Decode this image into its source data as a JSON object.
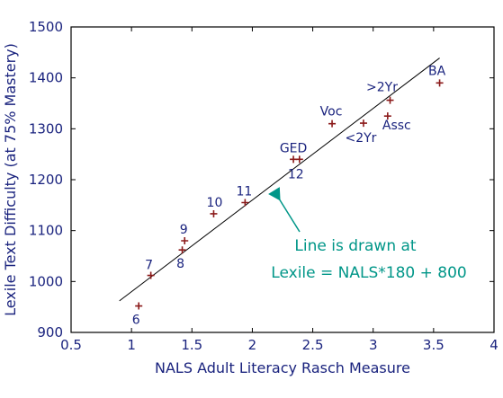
{
  "chart_data": {
    "type": "scatter",
    "xlabel": "NALS Adult Literacy Rasch Measure",
    "ylabel": "Lexile Text Difficulty (at 75% Mastery)",
    "xlim": [
      0.5,
      4
    ],
    "ylim": [
      900,
      1500
    ],
    "xticks": [
      "0.5",
      "1",
      "1.5",
      "2",
      "2.5",
      "3",
      "3.5",
      "4"
    ],
    "yticks": [
      "900",
      "1000",
      "1100",
      "1200",
      "1300",
      "1400",
      "1500"
    ],
    "grid": false,
    "points": [
      {
        "label": "6",
        "x": 1.06,
        "y": 952
      },
      {
        "label": "7",
        "x": 1.16,
        "y": 1012
      },
      {
        "label": "8",
        "x": 1.42,
        "y": 1062
      },
      {
        "label": "9",
        "x": 1.44,
        "y": 1080
      },
      {
        "label": "10",
        "x": 1.68,
        "y": 1133
      },
      {
        "label": "11",
        "x": 1.94,
        "y": 1155
      },
      {
        "label": "GED",
        "x": 2.34,
        "y": 1240
      },
      {
        "label": "12",
        "x": 2.39,
        "y": 1240
      },
      {
        "label": "Voc",
        "x": 2.66,
        "y": 1310
      },
      {
        "label": "<2Yr",
        "x": 2.92,
        "y": 1311
      },
      {
        "label": "Assc",
        "x": 3.12,
        "y": 1325
      },
      {
        "label": ">2Yr",
        "x": 3.14,
        "y": 1356
      },
      {
        "label": "BA",
        "x": 3.55,
        "y": 1390
      }
    ],
    "fit_line": {
      "slope": 180,
      "intercept": 800,
      "x_range": [
        0.9,
        3.55
      ]
    },
    "annotation": {
      "line1": "Line is drawn at",
      "line2": "Lexile = NALS*180 + 800"
    },
    "colors": {
      "axis": "#000000",
      "text": "#1a237e",
      "marker": "#8b1a1a",
      "annotation": "#009688"
    }
  }
}
